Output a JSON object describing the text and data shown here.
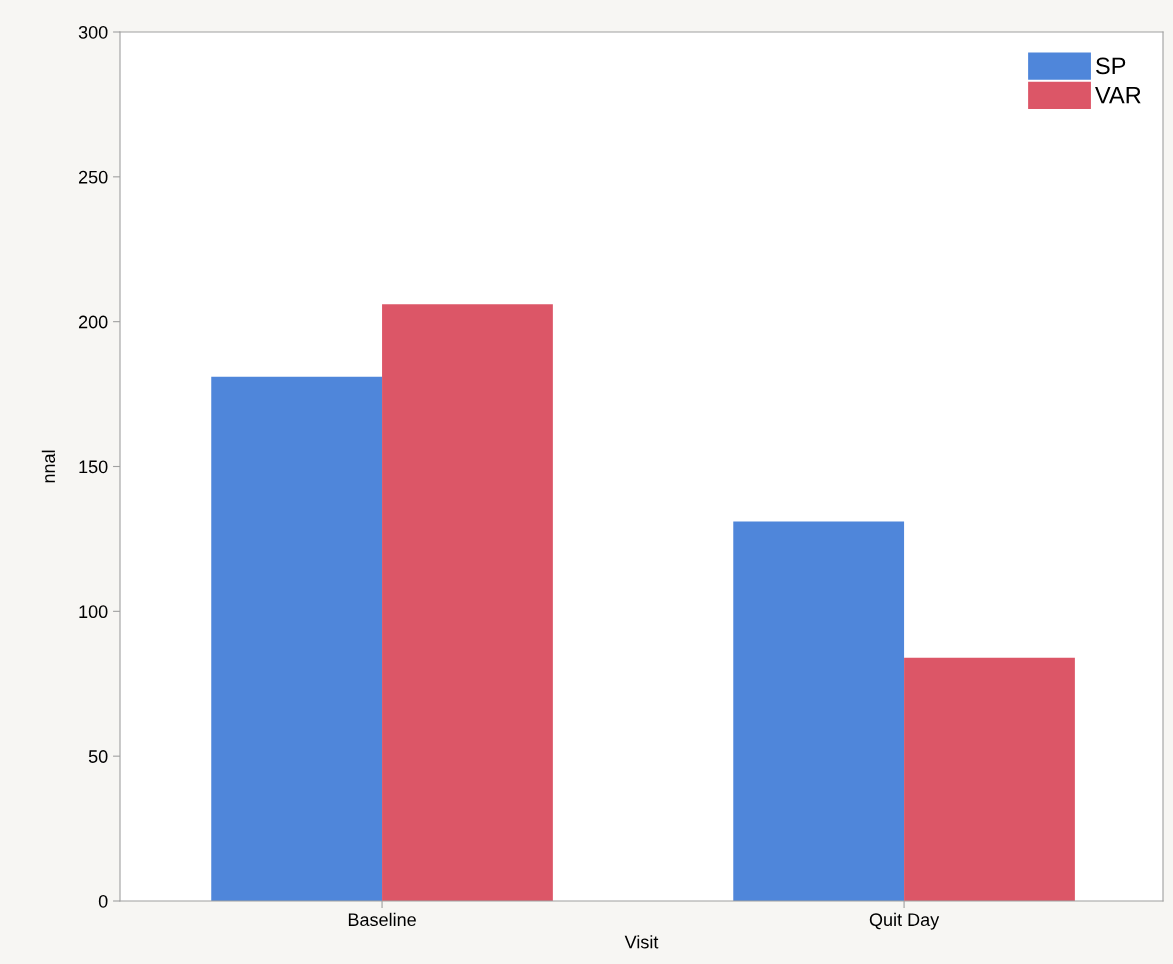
{
  "chart_data": {
    "type": "bar",
    "xlabel": "Visit",
    "ylabel": "nnal",
    "categories": [
      "Baseline",
      "Quit Day"
    ],
    "series": [
      {
        "name": "SP",
        "color": "#4f86da",
        "values": [
          181,
          131
        ]
      },
      {
        "name": "VAR",
        "color": "#dc5667",
        "values": [
          206,
          84
        ]
      }
    ],
    "ylim": [
      0,
      300
    ],
    "yticks": [
      0,
      50,
      100,
      150,
      200,
      250,
      300
    ],
    "grid": false,
    "legend": "top right"
  }
}
